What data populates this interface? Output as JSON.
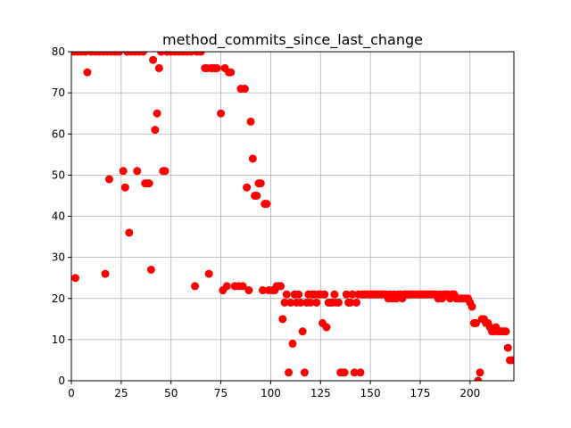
{
  "chart_data": {
    "type": "scatter",
    "title": "method_commits_since_last_change",
    "xlabel": "",
    "ylabel": "",
    "xlim": [
      0,
      222
    ],
    "ylim": [
      0,
      80
    ],
    "xticks": [
      0,
      25,
      50,
      75,
      100,
      125,
      150,
      175,
      200
    ],
    "yticks": [
      0,
      10,
      20,
      30,
      40,
      50,
      60,
      70,
      80
    ],
    "xtick_labels": [
      "0",
      "25",
      "50",
      "75",
      "100",
      "125",
      "150",
      "175",
      "200"
    ],
    "ytick_labels": [
      "0",
      "10",
      "20",
      "30",
      "40",
      "50",
      "60",
      "70",
      "80"
    ],
    "grid": true,
    "legend": "none",
    "marker_color": "#ff0000",
    "series": [
      {
        "points": [
          [
            1,
            80
          ],
          [
            2,
            25
          ],
          [
            3,
            80
          ],
          [
            5,
            80
          ],
          [
            7,
            80
          ],
          [
            8,
            75
          ],
          [
            10,
            80
          ],
          [
            12,
            80
          ],
          [
            14,
            80
          ],
          [
            16,
            80
          ],
          [
            17,
            26
          ],
          [
            18,
            80
          ],
          [
            19,
            49
          ],
          [
            20,
            80
          ],
          [
            22,
            80
          ],
          [
            24,
            80
          ],
          [
            26,
            51
          ],
          [
            27,
            47
          ],
          [
            28,
            80
          ],
          [
            29,
            36
          ],
          [
            30,
            80
          ],
          [
            32,
            80
          ],
          [
            33,
            51
          ],
          [
            34,
            80
          ],
          [
            36,
            80
          ],
          [
            37,
            48
          ],
          [
            38,
            48
          ],
          [
            39,
            48
          ],
          [
            40,
            27
          ],
          [
            41,
            78
          ],
          [
            42,
            61
          ],
          [
            43,
            65
          ],
          [
            44,
            76
          ],
          [
            45,
            80
          ],
          [
            46,
            51
          ],
          [
            47,
            51
          ],
          [
            48,
            80
          ],
          [
            50,
            80
          ],
          [
            52,
            80
          ],
          [
            54,
            80
          ],
          [
            56,
            80
          ],
          [
            58,
            80
          ],
          [
            60,
            80
          ],
          [
            62,
            23
          ],
          [
            63,
            80
          ],
          [
            65,
            80
          ],
          [
            67,
            76
          ],
          [
            68,
            76
          ],
          [
            69,
            26
          ],
          [
            70,
            76
          ],
          [
            71,
            76
          ],
          [
            72,
            76
          ],
          [
            73,
            76
          ],
          [
            75,
            65
          ],
          [
            76,
            22
          ],
          [
            77,
            76
          ],
          [
            78,
            23
          ],
          [
            79,
            75
          ],
          [
            80,
            75
          ],
          [
            82,
            23
          ],
          [
            84,
            23
          ],
          [
            85,
            71
          ],
          [
            86,
            23
          ],
          [
            87,
            71
          ],
          [
            88,
            47
          ],
          [
            89,
            22
          ],
          [
            90,
            63
          ],
          [
            91,
            54
          ],
          [
            92,
            45
          ],
          [
            93,
            45
          ],
          [
            94,
            48
          ],
          [
            95,
            48
          ],
          [
            96,
            22
          ],
          [
            97,
            43
          ],
          [
            98,
            43
          ],
          [
            99,
            22
          ],
          [
            101,
            22
          ],
          [
            102,
            22
          ],
          [
            103,
            23
          ],
          [
            104,
            23
          ],
          [
            105,
            23
          ],
          [
            106,
            15
          ],
          [
            107,
            19
          ],
          [
            108,
            21
          ],
          [
            109,
            2
          ],
          [
            110,
            19
          ],
          [
            111,
            9
          ],
          [
            112,
            21
          ],
          [
            113,
            19
          ],
          [
            114,
            21
          ],
          [
            115,
            19
          ],
          [
            116,
            12
          ],
          [
            117,
            2
          ],
          [
            118,
            19
          ],
          [
            119,
            21
          ],
          [
            120,
            19
          ],
          [
            121,
            21
          ],
          [
            122,
            21
          ],
          [
            123,
            19
          ],
          [
            124,
            21
          ],
          [
            125,
            21
          ],
          [
            126,
            14
          ],
          [
            127,
            21
          ],
          [
            128,
            13
          ],
          [
            129,
            19
          ],
          [
            130,
            19
          ],
          [
            131,
            19
          ],
          [
            132,
            21
          ],
          [
            133,
            19
          ],
          [
            134,
            19
          ],
          [
            135,
            2
          ],
          [
            136,
            2
          ],
          [
            137,
            2
          ],
          [
            138,
            21
          ],
          [
            139,
            19
          ],
          [
            140,
            19
          ],
          [
            141,
            21
          ],
          [
            142,
            2
          ],
          [
            143,
            19
          ],
          [
            144,
            21
          ],
          [
            145,
            2
          ],
          [
            146,
            21
          ],
          [
            147,
            21
          ],
          [
            148,
            21
          ],
          [
            149,
            21
          ],
          [
            150,
            21
          ],
          [
            151,
            21
          ],
          [
            152,
            21
          ],
          [
            153,
            21
          ],
          [
            154,
            21
          ],
          [
            155,
            21
          ],
          [
            156,
            21
          ],
          [
            157,
            21
          ],
          [
            158,
            21
          ],
          [
            159,
            20
          ],
          [
            160,
            21
          ],
          [
            161,
            20
          ],
          [
            162,
            21
          ],
          [
            163,
            20
          ],
          [
            164,
            21
          ],
          [
            165,
            21
          ],
          [
            166,
            20
          ],
          [
            167,
            21
          ],
          [
            168,
            21
          ],
          [
            169,
            21
          ],
          [
            170,
            21
          ],
          [
            171,
            21
          ],
          [
            172,
            21
          ],
          [
            173,
            21
          ],
          [
            174,
            21
          ],
          [
            175,
            21
          ],
          [
            176,
            21
          ],
          [
            177,
            21
          ],
          [
            178,
            21
          ],
          [
            179,
            21
          ],
          [
            180,
            21
          ],
          [
            181,
            21
          ],
          [
            182,
            21
          ],
          [
            183,
            21
          ],
          [
            184,
            20
          ],
          [
            185,
            21
          ],
          [
            186,
            20
          ],
          [
            187,
            21
          ],
          [
            188,
            21
          ],
          [
            189,
            21
          ],
          [
            190,
            20
          ],
          [
            191,
            21
          ],
          [
            192,
            21
          ],
          [
            193,
            20
          ],
          [
            194,
            20
          ],
          [
            195,
            20
          ],
          [
            196,
            20
          ],
          [
            197,
            20
          ],
          [
            198,
            20
          ],
          [
            199,
            20
          ],
          [
            200,
            19
          ],
          [
            201,
            18
          ],
          [
            202,
            14
          ],
          [
            203,
            14
          ],
          [
            204,
            0
          ],
          [
            205,
            2
          ],
          [
            206,
            15
          ],
          [
            207,
            15
          ],
          [
            208,
            14
          ],
          [
            209,
            14
          ],
          [
            210,
            13
          ],
          [
            211,
            12
          ],
          [
            212,
            12
          ],
          [
            213,
            13
          ],
          [
            214,
            12
          ],
          [
            215,
            12
          ],
          [
            216,
            12
          ],
          [
            217,
            12
          ],
          [
            218,
            12
          ],
          [
            219,
            8
          ],
          [
            220,
            5
          ],
          [
            221,
            5
          ]
        ]
      }
    ]
  }
}
